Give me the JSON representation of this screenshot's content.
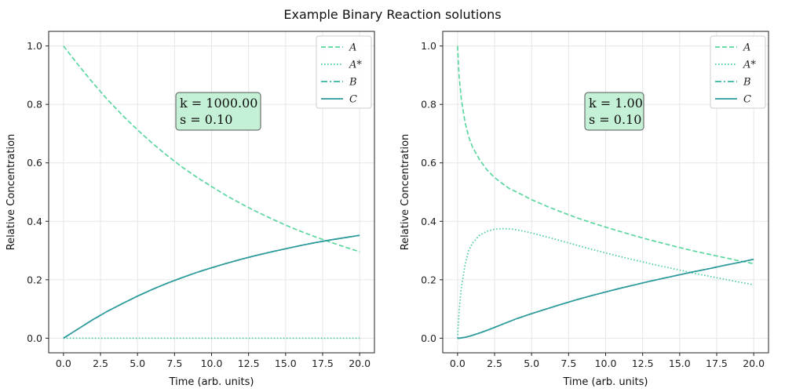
{
  "figure": {
    "suptitle": "Example Binary Reaction solutions"
  },
  "colors": {
    "A": "#5cd6a0",
    "A_star": "#45c9a6",
    "B": "#3ab2a8",
    "C": "#2e9a9c",
    "annotation_bg": "#c4f0d6",
    "annotation_border": "#555555",
    "grid": "#e6e6e6"
  },
  "chart_data": [
    {
      "type": "line",
      "xlabel": "Time (arb. units)",
      "ylabel": "Relative Concentration",
      "xlim": [
        -1,
        21
      ],
      "ylim": [
        -0.05,
        1.05
      ],
      "xticks": [
        "0.0",
        "2.5",
        "5.0",
        "7.5",
        "10.0",
        "12.5",
        "15.0",
        "17.5",
        "20.0"
      ],
      "yticks": [
        "0.0",
        "0.2",
        "0.4",
        "0.6",
        "0.8",
        "1.0"
      ],
      "grid": true,
      "legend_position": "top-right",
      "annotation": {
        "k": "k = 1000.00",
        "s": "s = 0.10"
      },
      "x": [
        0,
        1,
        2,
        3,
        4,
        5,
        6,
        7,
        8,
        9,
        10,
        11,
        12,
        13,
        14,
        15,
        16,
        17,
        18,
        19,
        20
      ],
      "series": [
        {
          "name": "A",
          "style": "dashed",
          "values": [
            1.0,
            0.935,
            0.873,
            0.815,
            0.762,
            0.713,
            0.667,
            0.625,
            0.586,
            0.551,
            0.519,
            0.488,
            0.46,
            0.434,
            0.41,
            0.387,
            0.366,
            0.347,
            0.329,
            0.312,
            0.296
          ]
        },
        {
          "name": "A*",
          "style": "dotted",
          "values": [
            0,
            0,
            0,
            0,
            0,
            0,
            0,
            0,
            0,
            0,
            0,
            0,
            0,
            0,
            0,
            0,
            0,
            0,
            0,
            0,
            0
          ]
        },
        {
          "name": "B",
          "style": "dashdot",
          "values": [
            0.0,
            0.032,
            0.064,
            0.093,
            0.119,
            0.144,
            0.167,
            0.188,
            0.207,
            0.225,
            0.241,
            0.256,
            0.27,
            0.283,
            0.295,
            0.306,
            0.317,
            0.327,
            0.336,
            0.344,
            0.352
          ]
        },
        {
          "name": "C",
          "style": "solid",
          "values": [
            0.0,
            0.032,
            0.064,
            0.093,
            0.119,
            0.144,
            0.167,
            0.188,
            0.207,
            0.225,
            0.241,
            0.256,
            0.27,
            0.283,
            0.295,
            0.306,
            0.317,
            0.327,
            0.336,
            0.344,
            0.352
          ]
        }
      ]
    },
    {
      "type": "line",
      "xlabel": "Time (arb. units)",
      "ylabel": "Relative Concentration",
      "xlim": [
        -1,
        21
      ],
      "ylim": [
        -0.05,
        1.05
      ],
      "xticks": [
        "0.0",
        "2.5",
        "5.0",
        "7.5",
        "10.0",
        "12.5",
        "15.0",
        "17.5",
        "20.0"
      ],
      "yticks": [
        "0.0",
        "0.2",
        "0.4",
        "0.6",
        "0.8",
        "1.0"
      ],
      "grid": true,
      "legend_position": "top-right",
      "annotation": {
        "k": "k = 1.00",
        "s": "s = 0.10"
      },
      "x": [
        0,
        0.1,
        0.25,
        0.5,
        0.75,
        1,
        1.5,
        2,
        2.5,
        3,
        3.5,
        4,
        5,
        6,
        7,
        8,
        9,
        10,
        11,
        12,
        13,
        14,
        15,
        16,
        17,
        18,
        19,
        20
      ],
      "series": [
        {
          "name": "A",
          "style": "dashed",
          "values": [
            1.0,
            0.9,
            0.82,
            0.74,
            0.69,
            0.655,
            0.61,
            0.575,
            0.55,
            0.53,
            0.512,
            0.5,
            0.474,
            0.452,
            0.432,
            0.413,
            0.396,
            0.38,
            0.365,
            0.35,
            0.336,
            0.323,
            0.31,
            0.298,
            0.287,
            0.276,
            0.265,
            0.255
          ]
        },
        {
          "name": "A*",
          "style": "dotted",
          "values": [
            0.0,
            0.09,
            0.17,
            0.25,
            0.3,
            0.325,
            0.353,
            0.366,
            0.373,
            0.375,
            0.374,
            0.371,
            0.36,
            0.347,
            0.333,
            0.319,
            0.305,
            0.292,
            0.279,
            0.267,
            0.255,
            0.244,
            0.233,
            0.222,
            0.212,
            0.202,
            0.192,
            0.183
          ]
        },
        {
          "name": "B",
          "style": "dashdot",
          "values": [
            0.0,
            0.0,
            0.001,
            0.003,
            0.006,
            0.01,
            0.018,
            0.027,
            0.037,
            0.047,
            0.057,
            0.067,
            0.084,
            0.1,
            0.116,
            0.131,
            0.145,
            0.158,
            0.171,
            0.183,
            0.195,
            0.206,
            0.217,
            0.228,
            0.238,
            0.249,
            0.259,
            0.27
          ]
        },
        {
          "name": "C",
          "style": "solid",
          "values": [
            0.0,
            0.0,
            0.001,
            0.003,
            0.006,
            0.01,
            0.018,
            0.027,
            0.037,
            0.047,
            0.057,
            0.067,
            0.084,
            0.1,
            0.116,
            0.131,
            0.145,
            0.158,
            0.171,
            0.183,
            0.195,
            0.206,
            0.217,
            0.228,
            0.238,
            0.249,
            0.259,
            0.27
          ]
        }
      ]
    }
  ]
}
